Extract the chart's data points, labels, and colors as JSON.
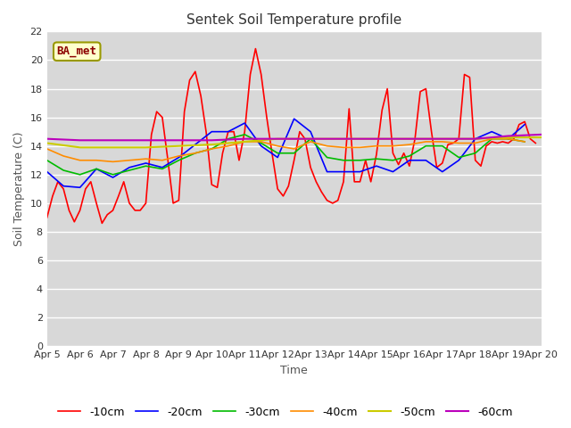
{
  "title": "Sentek Soil Temperature profile",
  "xlabel": "Time",
  "ylabel": "Soil Temperature (C)",
  "ylim": [
    0,
    22
  ],
  "yticks": [
    0,
    2,
    4,
    6,
    8,
    10,
    12,
    14,
    16,
    18,
    20,
    22
  ],
  "x_labels": [
    "Apr 5",
    "Apr 6",
    "Apr 7",
    "Apr 8",
    "Apr 9",
    "Apr 10",
    "Apr 11",
    "Apr 12",
    "Apr 13",
    "Apr 14",
    "Apr 15",
    "Apr 16",
    "Apr 17",
    "Apr 18",
    "Apr 19",
    "Apr 20"
  ],
  "annotation_text": "BA_met",
  "annotation_color": "#8B0000",
  "annotation_bg": "#FFFFCC",
  "fig_bg": "#FFFFFF",
  "plot_bg": "#D8D8D8",
  "grid_color": "#FFFFFF",
  "series": {
    "-10cm": {
      "color": "#FF0000",
      "lw": 1.2,
      "data_x": [
        0,
        0.17,
        0.33,
        0.5,
        0.67,
        0.83,
        1.0,
        1.17,
        1.33,
        1.5,
        1.67,
        1.83,
        2.0,
        2.17,
        2.33,
        2.5,
        2.67,
        2.83,
        3.0,
        3.17,
        3.33,
        3.5,
        3.67,
        3.83,
        4.0,
        4.17,
        4.33,
        4.5,
        4.67,
        4.83,
        5.0,
        5.17,
        5.33,
        5.5,
        5.67,
        5.83,
        6.0,
        6.17,
        6.33,
        6.5,
        6.67,
        6.83,
        7.0,
        7.17,
        7.33,
        7.5,
        7.67,
        7.83,
        8.0,
        8.17,
        8.33,
        8.5,
        8.67,
        8.83,
        9.0,
        9.17,
        9.33,
        9.5,
        9.67,
        9.83,
        10.0,
        10.17,
        10.33,
        10.5,
        10.67,
        10.83,
        11.0,
        11.17,
        11.33,
        11.5,
        11.67,
        11.83,
        12.0,
        12.17,
        12.33,
        12.5,
        12.67,
        12.83,
        13.0,
        13.17,
        13.33,
        13.5,
        13.67,
        13.83,
        14.0,
        14.17,
        14.33,
        14.5,
        14.67,
        14.83
      ],
      "data_y": [
        9.0,
        10.5,
        11.5,
        11.0,
        9.5,
        8.7,
        9.5,
        11.0,
        11.5,
        10.0,
        8.6,
        9.2,
        9.5,
        10.5,
        11.5,
        10.0,
        9.5,
        9.5,
        10.0,
        14.8,
        16.4,
        16.0,
        13.0,
        10.0,
        10.2,
        16.4,
        18.6,
        19.2,
        17.5,
        15.0,
        11.3,
        11.1,
        13.5,
        15.0,
        15.0,
        13.0,
        15.0,
        19.0,
        20.8,
        19.0,
        16.0,
        13.5,
        11.0,
        10.5,
        11.2,
        13.0,
        15.0,
        14.5,
        12.5,
        11.5,
        10.8,
        10.2,
        10.0,
        10.2,
        11.5,
        16.6,
        11.5,
        11.5,
        13.0,
        11.5,
        13.4,
        16.5,
        18.0,
        13.5,
        12.7,
        13.5,
        12.6,
        14.5,
        17.8,
        18.0,
        15.0,
        12.5,
        12.8,
        14.1,
        14.2,
        14.5,
        19.0,
        18.8,
        13.0,
        12.6,
        14.0,
        14.3,
        14.2,
        14.3,
        14.2,
        14.5,
        15.5,
        15.7,
        14.5,
        14.2
      ]
    },
    "-20cm": {
      "color": "#0000FF",
      "lw": 1.2,
      "data_x": [
        0,
        0.5,
        1.0,
        1.5,
        2.0,
        2.5,
        3.0,
        3.5,
        4.0,
        4.5,
        5.0,
        5.5,
        6.0,
        6.5,
        7.0,
        7.5,
        8.0,
        8.5,
        9.0,
        9.5,
        10.0,
        10.5,
        11.0,
        11.5,
        12.0,
        12.5,
        13.0,
        13.5,
        14.0,
        14.5
      ],
      "data_y": [
        12.2,
        11.2,
        11.1,
        12.4,
        11.8,
        12.5,
        12.8,
        12.5,
        13.2,
        14.1,
        15.0,
        15.0,
        15.6,
        14.0,
        13.2,
        15.9,
        15.0,
        12.2,
        12.2,
        12.2,
        12.6,
        12.2,
        13.0,
        13.0,
        12.2,
        13.0,
        14.5,
        15.0,
        14.5,
        15.5
      ]
    },
    "-30cm": {
      "color": "#00BB00",
      "lw": 1.2,
      "data_x": [
        0,
        0.5,
        1.0,
        1.5,
        2.0,
        2.5,
        3.0,
        3.5,
        4.0,
        4.5,
        5.0,
        5.5,
        6.0,
        6.5,
        7.0,
        7.5,
        8.0,
        8.5,
        9.0,
        9.5,
        10.0,
        10.5,
        11.0,
        11.5,
        12.0,
        12.5,
        13.0,
        13.5,
        14.0,
        14.5
      ],
      "data_y": [
        13.0,
        12.3,
        12.0,
        12.4,
        12.0,
        12.3,
        12.6,
        12.4,
        13.0,
        13.5,
        13.8,
        14.5,
        14.8,
        14.2,
        13.5,
        13.5,
        14.5,
        13.2,
        13.0,
        13.0,
        13.1,
        13.0,
        13.3,
        14.0,
        14.0,
        13.2,
        13.5,
        14.5,
        14.5,
        14.3
      ]
    },
    "-40cm": {
      "color": "#FF8C00",
      "lw": 1.2,
      "data_x": [
        0,
        0.5,
        1.0,
        1.5,
        2.0,
        2.5,
        3.0,
        3.5,
        4.0,
        4.5,
        5.0,
        5.5,
        6.0,
        6.5,
        7.0,
        7.5,
        8.0,
        8.5,
        9.0,
        9.5,
        10.0,
        10.5,
        11.0,
        11.5,
        12.0,
        12.5,
        13.0,
        13.5,
        14.0,
        14.5
      ],
      "data_y": [
        13.8,
        13.3,
        13.0,
        13.0,
        12.9,
        13.0,
        13.1,
        13.0,
        13.3,
        13.5,
        13.8,
        14.0,
        14.3,
        14.3,
        14.0,
        13.8,
        14.3,
        14.0,
        13.9,
        13.9,
        14.0,
        14.0,
        14.1,
        14.3,
        14.3,
        14.2,
        14.2,
        14.5,
        14.5,
        14.3
      ]
    },
    "-50cm": {
      "color": "#CCCC00",
      "lw": 1.5,
      "data_x": [
        0,
        1.0,
        2.0,
        3.0,
        4.0,
        5.0,
        6.0,
        7.0,
        8.0,
        9.0,
        10.0,
        11.0,
        12.0,
        13.0,
        14.0,
        15.0
      ],
      "data_y": [
        14.2,
        13.9,
        13.9,
        13.9,
        14.0,
        14.1,
        14.3,
        14.5,
        14.5,
        14.5,
        14.5,
        14.5,
        14.5,
        14.5,
        14.6,
        14.6
      ]
    },
    "-60cm": {
      "color": "#BB00BB",
      "lw": 1.5,
      "data_x": [
        0,
        1.0,
        2.0,
        3.0,
        4.0,
        5.0,
        6.0,
        7.0,
        8.0,
        9.0,
        10.0,
        11.0,
        12.0,
        13.0,
        14.0,
        15.0
      ],
      "data_y": [
        14.5,
        14.4,
        14.4,
        14.4,
        14.4,
        14.4,
        14.5,
        14.5,
        14.5,
        14.5,
        14.5,
        14.5,
        14.5,
        14.5,
        14.7,
        14.8
      ]
    }
  }
}
